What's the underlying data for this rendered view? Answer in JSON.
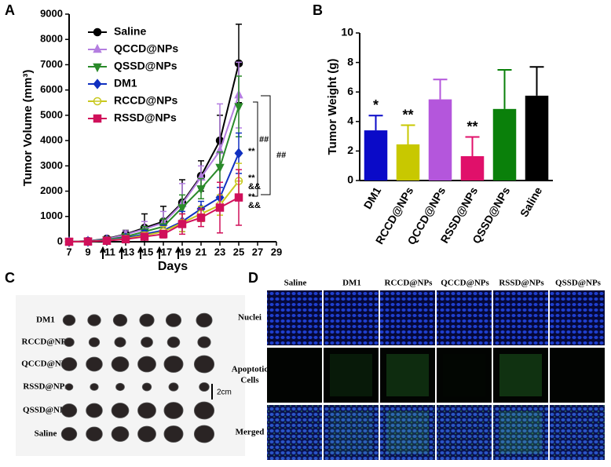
{
  "panels": [
    "A",
    "B",
    "C",
    "D"
  ],
  "chart_data": [
    {
      "type": "line",
      "x_label": "Days",
      "y_label": "Tumor Volume (mm³)",
      "x": [
        7,
        9,
        11,
        13,
        15,
        17,
        19,
        21,
        23,
        25
      ],
      "xlim": [
        7,
        29
      ],
      "xticks": [
        7,
        9,
        11,
        13,
        15,
        17,
        19,
        21,
        23,
        25,
        27,
        29
      ],
      "ylim": [
        0,
        9000
      ],
      "yticks": [
        0,
        1000,
        2000,
        3000,
        4000,
        5000,
        6000,
        7000,
        8000,
        9000
      ],
      "dosing_days": [
        11,
        13,
        15,
        17,
        19
      ],
      "series": [
        {
          "name": "Saline",
          "color": "#000000",
          "marker": "circle",
          "values": [
            0,
            30,
            120,
            300,
            550,
            800,
            1550,
            2600,
            4000,
            7050
          ],
          "errors": [
            0,
            20,
            60,
            150,
            550,
            600,
            900,
            600,
            1000,
            1550
          ]
        },
        {
          "name": "QCCD@NPs",
          "color": "#b47ee0",
          "marker": "triangle-up",
          "values": [
            0,
            30,
            100,
            280,
            500,
            750,
            1500,
            2550,
            3600,
            5800
          ],
          "errors": [
            0,
            20,
            50,
            150,
            300,
            450,
            800,
            450,
            1850,
            1300
          ]
        },
        {
          "name": "QSSD@NPs",
          "color": "#2a8a2a",
          "marker": "triangle-down",
          "values": [
            0,
            20,
            80,
            200,
            400,
            600,
            1350,
            2100,
            2950,
            5350
          ],
          "errors": [
            0,
            15,
            40,
            100,
            200,
            300,
            500,
            400,
            600,
            1200
          ]
        },
        {
          "name": "DM1",
          "color": "#1030c0",
          "marker": "diamond",
          "values": [
            0,
            10,
            60,
            150,
            300,
            450,
            800,
            1300,
            1750,
            3500
          ],
          "errors": [
            0,
            10,
            30,
            80,
            150,
            200,
            400,
            300,
            400,
            800
          ]
        },
        {
          "name": "RCCD@NPs",
          "color": "#c8c81e",
          "marker": "circle-open",
          "values": [
            0,
            10,
            50,
            120,
            250,
            400,
            750,
            1100,
            1450,
            2400
          ],
          "errors": [
            0,
            10,
            30,
            60,
            120,
            200,
            350,
            300,
            400,
            700
          ]
        },
        {
          "name": "RSSD@NPs",
          "color": "#d0105a",
          "marker": "square",
          "values": [
            0,
            10,
            40,
            100,
            200,
            300,
            700,
            950,
            1350,
            1750
          ],
          "errors": [
            0,
            10,
            30,
            50,
            100,
            150,
            400,
            350,
            1000,
            1100
          ]
        }
      ],
      "annotations": [
        "**",
        "**",
        "&&",
        "**",
        "&&",
        "##",
        "##"
      ]
    },
    {
      "type": "bar",
      "y_label": "Tumor Weight (g)",
      "categories": [
        "DM1",
        "RCCD@NPs",
        "QCCD@NPs",
        "RSSD@NPs",
        "QSSD@NPs",
        "Saline"
      ],
      "values": [
        3.4,
        2.45,
        5.5,
        1.65,
        4.85,
        5.75
      ],
      "errors": [
        1.0,
        1.3,
        1.35,
        1.3,
        2.65,
        1.95
      ],
      "colors": [
        "#0a0ac8",
        "#c8c800",
        "#b456dc",
        "#e0106a",
        "#0a800a",
        "#000000"
      ],
      "significance": [
        "*",
        "**",
        null,
        "**",
        null,
        null
      ],
      "ylim": [
        0,
        10
      ],
      "yticks": [
        0,
        2,
        4,
        6,
        8,
        10
      ]
    }
  ],
  "photo": {
    "rows": [
      "DM1",
      "RCCD@NPs",
      "QCCD@NPs",
      "RSSD@NPs",
      "QSSD@NPs",
      "Saline"
    ],
    "scale_label": "2cm"
  },
  "microscopy": {
    "columns": [
      "Saline",
      "DM1",
      "RCCD@NPs",
      "QCCD@NPs",
      "RSSD@NPs",
      "QSSD@NPs"
    ],
    "rows": [
      [
        "Nuclei"
      ],
      [
        "Apoptotic",
        "Cells"
      ],
      [
        "Merged"
      ]
    ]
  }
}
